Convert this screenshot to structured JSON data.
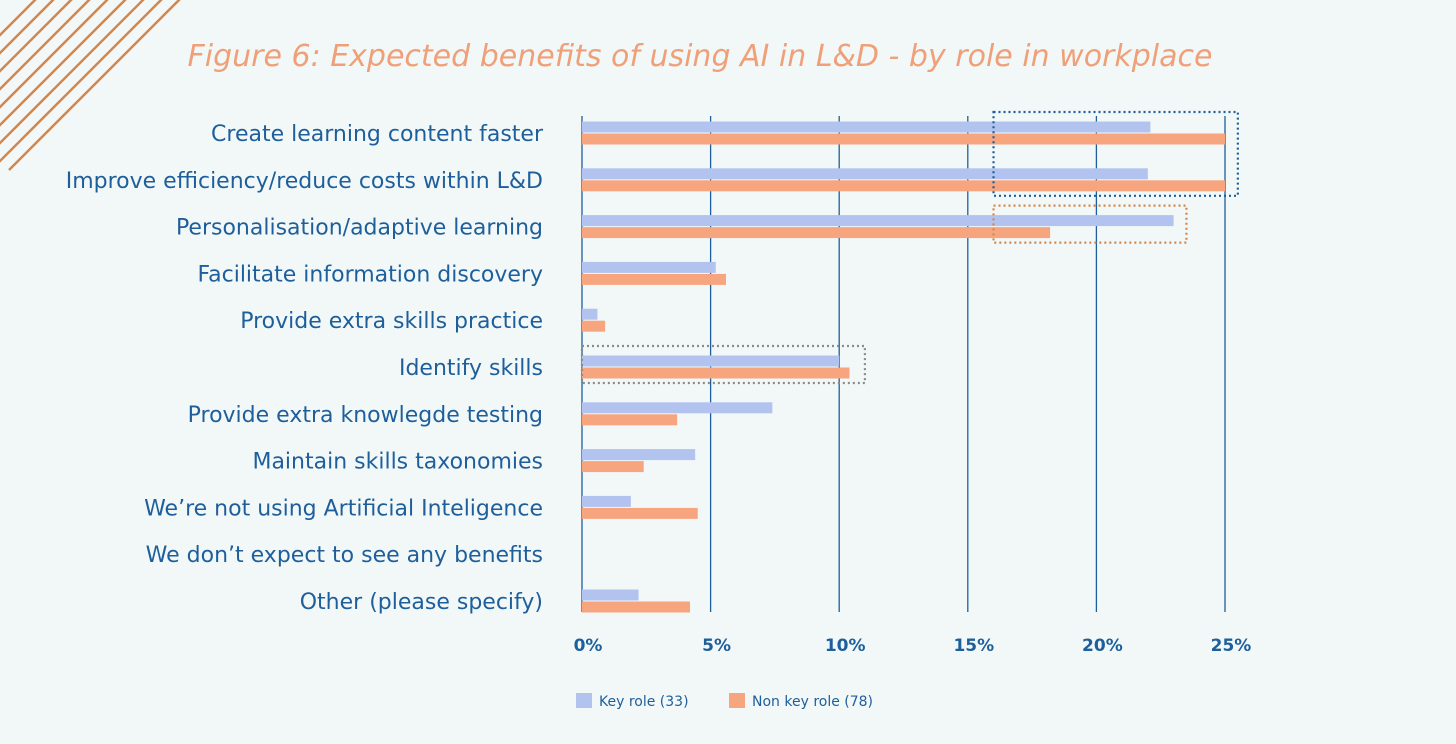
{
  "chart_data": {
    "type": "bar",
    "orientation": "horizontal",
    "title": "Figure 6: Expected benefits of using AI in L&D - by role in workplace",
    "xlabel": "",
    "ylabel": "",
    "categories": [
      "Create learning content faster",
      "Improve efficiency/reduce costs within L&D",
      "Personalisation/adaptive learning",
      "Facilitate information discovery",
      "Provide extra skills practice",
      "Identify skills",
      "Provide extra knowlegde testing",
      "Maintain skills taxonomies",
      "We’re not using Artificial Inteligence",
      "We don’t expect to see any benefits",
      "Other (please specify)"
    ],
    "series": [
      {
        "name": "Key role (33)",
        "color": "#b3c3ef",
        "values": [
          22.1,
          22.0,
          23.0,
          5.2,
          0.6,
          10.0,
          7.4,
          4.4,
          1.9,
          0,
          2.2
        ]
      },
      {
        "name": "Non key role (78)",
        "color": "#f7a57f",
        "values": [
          25.0,
          25.0,
          18.2,
          5.6,
          0.9,
          10.4,
          3.7,
          2.4,
          4.5,
          0,
          4.2
        ]
      }
    ],
    "xlim": [
      0,
      25
    ],
    "xticks": [
      0,
      5,
      10,
      15,
      20,
      25
    ],
    "xtick_labels": [
      "0%",
      "5%",
      "10%",
      "15%",
      "20%",
      "25%"
    ],
    "grid": true,
    "legend_position": "bottom",
    "highlights": [
      {
        "color": "#1e5f9b",
        "categories": [
          0,
          1
        ],
        "from": 16,
        "to": 25.5
      },
      {
        "color": "#d3864b",
        "categories": [
          2,
          2
        ],
        "from": 16,
        "to": 23.5
      },
      {
        "color": "#8a8a8a",
        "categories": [
          5,
          5
        ],
        "from": 0,
        "to": 11
      }
    ],
    "colors": {
      "title": "#f0a078",
      "label": "#1e5f9b",
      "grid": "#1e5f9b",
      "decor": "#d3864b"
    }
  }
}
